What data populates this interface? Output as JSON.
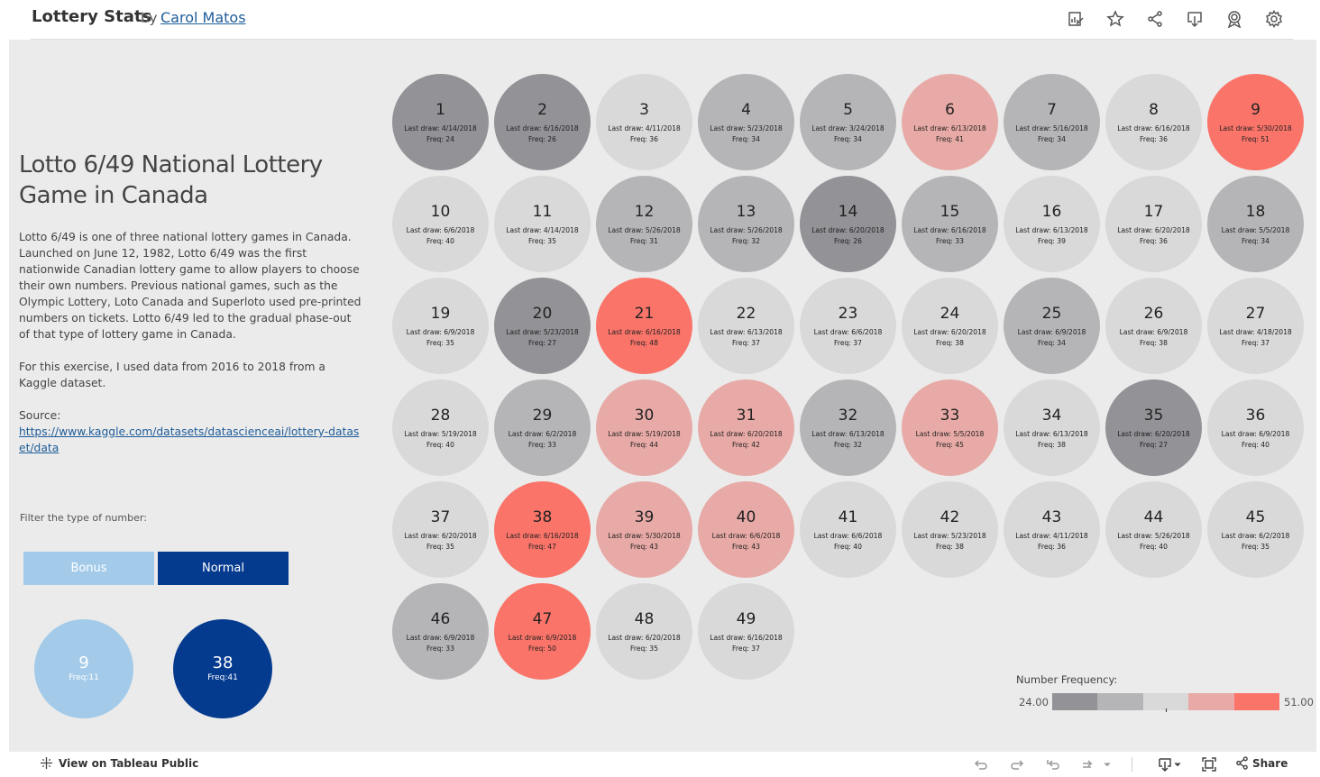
{
  "header": {
    "title": "Lottery Stats",
    "by": "by",
    "author": "Carol Matos",
    "icons": [
      "edit-icon",
      "star-icon",
      "share-nodes-icon",
      "download-icon",
      "badge-icon",
      "gear-icon"
    ]
  },
  "left_panel": {
    "game_title": "Lotto 6/49 National Lottery Game in Canada",
    "description": "Lotto 6/49 is one of three national lottery games in Canada. Launched on June 12, 1982, Lotto 6/49 was the first nationwide Canadian lottery game to allow players to choose their own numbers. Previous national games, such as the Olympic Lottery, Loto Canada and Superloto used pre-printed numbers on tickets. Lotto 6/49 led to the gradual phase-out of that type of lottery game in Canada.",
    "description2": "For this exercise, I used data from 2016 to 2018 from a Kaggle dataset.",
    "source_label": "Source:",
    "source_link": "https://www.kaggle.com/datasets/datascienceai/lottery-dataset/data",
    "filter_label": "Filter the type of number:",
    "buttons": {
      "bonus": "Bonus",
      "normal": "Normal"
    },
    "summary": {
      "bonus": {
        "number": "9",
        "freq": "Freq:11"
      },
      "normal": {
        "number": "38",
        "freq": "Freq:41"
      }
    }
  },
  "colors": {
    "dark_gray": "#929297",
    "mid_gray": "#b5b5b8",
    "light_gray": "#d9d9d9",
    "light_salmon": "#e8aaa6",
    "salmon": "#fa7469",
    "bonus_blue": "#a3cbe9",
    "normal_blue": "#053b8f"
  },
  "balls": [
    {
      "n": "1",
      "date": "4/14/2018",
      "freq": 24
    },
    {
      "n": "2",
      "date": "6/16/2018",
      "freq": 26
    },
    {
      "n": "3",
      "date": "4/11/2018",
      "freq": 36
    },
    {
      "n": "4",
      "date": "5/23/2018",
      "freq": 34
    },
    {
      "n": "5",
      "date": "3/24/2018",
      "freq": 34
    },
    {
      "n": "6",
      "date": "6/13/2018",
      "freq": 41
    },
    {
      "n": "7",
      "date": "5/16/2018",
      "freq": 34
    },
    {
      "n": "8",
      "date": "6/16/2018",
      "freq": 36
    },
    {
      "n": "9",
      "date": "5/30/2018",
      "freq": 51
    },
    {
      "n": "10",
      "date": "6/6/2018",
      "freq": 40
    },
    {
      "n": "11",
      "date": "4/14/2018",
      "freq": 35
    },
    {
      "n": "12",
      "date": "5/26/2018",
      "freq": 31
    },
    {
      "n": "13",
      "date": "5/26/2018",
      "freq": 32
    },
    {
      "n": "14",
      "date": "6/20/2018",
      "freq": 26
    },
    {
      "n": "15",
      "date": "6/16/2018",
      "freq": 33
    },
    {
      "n": "16",
      "date": "6/13/2018",
      "freq": 39
    },
    {
      "n": "17",
      "date": "6/20/2018",
      "freq": 36
    },
    {
      "n": "18",
      "date": "5/5/2018",
      "freq": 34
    },
    {
      "n": "19",
      "date": "6/9/2018",
      "freq": 35
    },
    {
      "n": "20",
      "date": "5/23/2018",
      "freq": 27
    },
    {
      "n": "21",
      "date": "6/16/2018",
      "freq": 48
    },
    {
      "n": "22",
      "date": "6/13/2018",
      "freq": 37
    },
    {
      "n": "23",
      "date": "6/6/2018",
      "freq": 37
    },
    {
      "n": "24",
      "date": "6/20/2018",
      "freq": 38
    },
    {
      "n": "25",
      "date": "6/9/2018",
      "freq": 34
    },
    {
      "n": "26",
      "date": "6/9/2018",
      "freq": 38
    },
    {
      "n": "27",
      "date": "4/18/2018",
      "freq": 37
    },
    {
      "n": "28",
      "date": "5/19/2018",
      "freq": 40
    },
    {
      "n": "29",
      "date": "6/2/2018",
      "freq": 33
    },
    {
      "n": "30",
      "date": "5/19/2018",
      "freq": 44
    },
    {
      "n": "31",
      "date": "6/20/2018",
      "freq": 42
    },
    {
      "n": "32",
      "date": "6/13/2018",
      "freq": 32
    },
    {
      "n": "33",
      "date": "5/5/2018",
      "freq": 45
    },
    {
      "n": "34",
      "date": "6/13/2018",
      "freq": 38
    },
    {
      "n": "35",
      "date": "6/20/2018",
      "freq": 27
    },
    {
      "n": "36",
      "date": "6/9/2018",
      "freq": 40
    },
    {
      "n": "37",
      "date": "6/20/2018",
      "freq": 35
    },
    {
      "n": "38",
      "date": "6/16/2018",
      "freq": 47
    },
    {
      "n": "39",
      "date": "5/30/2018",
      "freq": 43
    },
    {
      "n": "40",
      "date": "6/6/2018",
      "freq": 43
    },
    {
      "n": "41",
      "date": "6/6/2018",
      "freq": 40
    },
    {
      "n": "42",
      "date": "5/23/2018",
      "freq": 38
    },
    {
      "n": "43",
      "date": "4/11/2018",
      "freq": 36
    },
    {
      "n": "44",
      "date": "5/26/2018",
      "freq": 40
    },
    {
      "n": "45",
      "date": "6/2/2018",
      "freq": 35
    },
    {
      "n": "46",
      "date": "6/9/2018",
      "freq": 33
    },
    {
      "n": "47",
      "date": "6/9/2018",
      "freq": 50
    },
    {
      "n": "48",
      "date": "6/20/2018",
      "freq": 35
    },
    {
      "n": "49",
      "date": "6/16/2018",
      "freq": 37
    }
  ],
  "ball_labels": {
    "last_draw": "Last draw: ",
    "freq": "Freq: "
  },
  "legend": {
    "title": "Number Frequency:",
    "min": "24.00",
    "max": "51.00"
  },
  "footer": {
    "view_label": "View on Tableau Public",
    "share_label": "Share",
    "icons": [
      "undo-icon",
      "redo-icon",
      "revert-icon",
      "refresh-icon",
      "download-icon",
      "fullscreen-icon",
      "share-icon"
    ]
  }
}
